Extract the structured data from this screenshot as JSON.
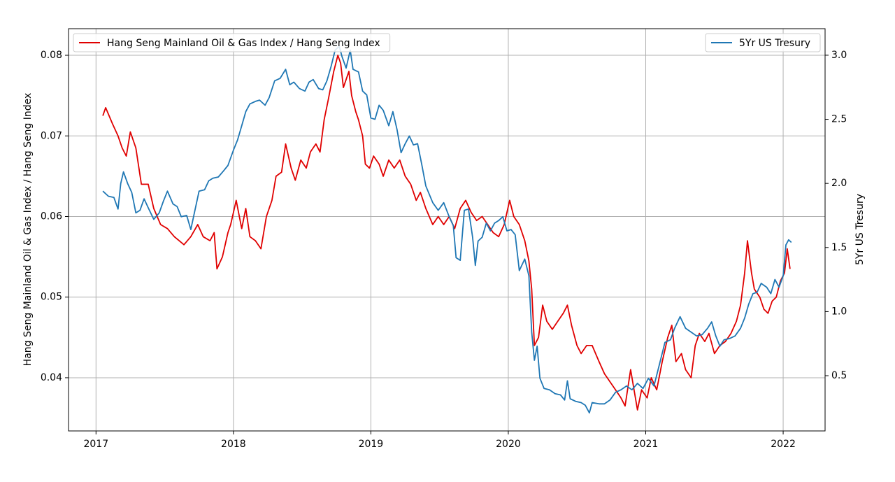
{
  "chart_data": {
    "type": "line",
    "ylabel": "Hang Seng Mainland Oil & Gas Index / Hang Seng Index",
    "y2label": "5Yr US Tresury",
    "xlim": [
      2016.8,
      2022.305
    ],
    "xticks": [
      2017,
      2018,
      2019,
      2020,
      2021,
      2022
    ],
    "ylim": [
      0.0334,
      0.0833
    ],
    "yticks": [
      0.04,
      0.05,
      0.06,
      0.07,
      0.08
    ],
    "y2lim": [
      0.069,
      3.207
    ],
    "y2ticks": [
      {
        "value": 0.5,
        "label": "0.5"
      },
      {
        "value": 1,
        "label": "1.0"
      },
      {
        "value": 1.5,
        "label": "1.5"
      },
      {
        "value": 2,
        "label": "2.0"
      },
      {
        "value": 2.5,
        "label": "2.5"
      },
      {
        "value": 3,
        "label": "3.0"
      }
    ],
    "grid": true,
    "series": [
      {
        "name": "Hang Seng Mainland Oil & Gas Index / Hang Seng Index",
        "color": "#e00000",
        "axis": "y",
        "legend": "upper left",
        "x": [
          2017.05,
          2017.07,
          2017.12,
          2017.16,
          2017.19,
          2017.22,
          2017.25,
          2017.29,
          2017.33,
          2017.38,
          2017.42,
          2017.47,
          2017.52,
          2017.57,
          2017.64,
          2017.69,
          2017.74,
          2017.78,
          2017.83,
          2017.86,
          2017.88,
          2017.92,
          2017.96,
          2017.98,
          2018.02,
          2018.06,
          2018.09,
          2018.12,
          2018.16,
          2018.2,
          2018.24,
          2018.28,
          2018.31,
          2018.35,
          2018.38,
          2018.42,
          2018.45,
          2018.49,
          2018.53,
          2018.56,
          2018.6,
          2018.63,
          2018.66,
          2018.69,
          2018.73,
          2018.76,
          2018.78,
          2018.8,
          2018.84,
          2018.86,
          2018.89,
          2018.91,
          2018.94,
          2018.96,
          2018.99,
          2019.02,
          2019.06,
          2019.09,
          2019.13,
          2019.17,
          2019.21,
          2019.25,
          2019.29,
          2019.33,
          2019.36,
          2019.4,
          2019.45,
          2019.49,
          2019.53,
          2019.57,
          2019.61,
          2019.65,
          2019.69,
          2019.73,
          2019.77,
          2019.81,
          2019.85,
          2019.89,
          2019.93,
          2019.97,
          2020.01,
          2020.04,
          2020.08,
          2020.12,
          2020.15,
          2020.17,
          2020.19,
          2020.22,
          2020.25,
          2020.28,
          2020.32,
          2020.36,
          2020.4,
          2020.43,
          2020.46,
          2020.5,
          2020.53,
          2020.57,
          2020.61,
          2020.66,
          2020.7,
          2020.74,
          2020.78,
          2020.82,
          2020.85,
          2020.89,
          2020.91,
          2020.94,
          2020.97,
          2021.01,
          2021.04,
          2021.08,
          2021.12,
          2021.16,
          2021.19,
          2021.22,
          2021.26,
          2021.29,
          2021.33,
          2021.36,
          2021.39,
          2021.43,
          2021.46,
          2021.5,
          2021.54,
          2021.58,
          2021.62,
          2021.66,
          2021.69,
          2021.72,
          2021.74,
          2021.77,
          2021.79,
          2021.83,
          2021.86,
          2021.89,
          2021.92,
          2021.95,
          2021.98,
          2022.01,
          2022.03,
          2022.05
        ],
        "values": [
          0.0725,
          0.0735,
          0.0715,
          0.07,
          0.0685,
          0.0675,
          0.0705,
          0.0685,
          0.064,
          0.064,
          0.061,
          0.059,
          0.0585,
          0.0575,
          0.0565,
          0.0575,
          0.059,
          0.0575,
          0.057,
          0.058,
          0.0535,
          0.055,
          0.058,
          0.059,
          0.062,
          0.0585,
          0.061,
          0.0575,
          0.057,
          0.056,
          0.06,
          0.062,
          0.065,
          0.0655,
          0.069,
          0.066,
          0.0645,
          0.067,
          0.066,
          0.068,
          0.069,
          0.068,
          0.072,
          0.0745,
          0.078,
          0.08,
          0.079,
          0.076,
          0.078,
          0.075,
          0.073,
          0.072,
          0.07,
          0.0665,
          0.066,
          0.0675,
          0.0665,
          0.065,
          0.067,
          0.066,
          0.067,
          0.065,
          0.064,
          0.062,
          0.063,
          0.061,
          0.059,
          0.06,
          0.059,
          0.06,
          0.0585,
          0.061,
          0.062,
          0.0605,
          0.0595,
          0.06,
          0.059,
          0.058,
          0.0575,
          0.059,
          0.062,
          0.06,
          0.059,
          0.057,
          0.0545,
          0.051,
          0.044,
          0.045,
          0.049,
          0.047,
          0.046,
          0.047,
          0.048,
          0.049,
          0.0465,
          0.044,
          0.043,
          0.044,
          0.044,
          0.042,
          0.0405,
          0.0395,
          0.0385,
          0.0375,
          0.0365,
          0.041,
          0.039,
          0.036,
          0.0385,
          0.0375,
          0.04,
          0.0385,
          0.042,
          0.045,
          0.0465,
          0.042,
          0.043,
          0.041,
          0.04,
          0.044,
          0.0455,
          0.0445,
          0.0455,
          0.043,
          0.044,
          0.0445,
          0.0455,
          0.047,
          0.049,
          0.053,
          0.057,
          0.053,
          0.051,
          0.05,
          0.0485,
          0.048,
          0.0495,
          0.05,
          0.052,
          0.053,
          0.056,
          0.0535
        ]
      },
      {
        "name": "5Yr US Tresury",
        "color": "#1f77b4",
        "axis": "y2",
        "legend": "upper right",
        "x": [
          2017.05,
          2017.09,
          2017.13,
          2017.16,
          2017.18,
          2017.2,
          2017.23,
          2017.26,
          2017.29,
          2017.32,
          2017.35,
          2017.38,
          2017.42,
          2017.46,
          2017.49,
          2017.52,
          2017.56,
          2017.59,
          2017.62,
          2017.66,
          2017.69,
          2017.72,
          2017.75,
          2017.79,
          2017.82,
          2017.85,
          2017.89,
          2017.93,
          2017.96,
          2018.0,
          2018.03,
          2018.06,
          2018.09,
          2018.12,
          2018.16,
          2018.19,
          2018.23,
          2018.26,
          2018.3,
          2018.34,
          2018.38,
          2018.41,
          2018.44,
          2018.48,
          2018.52,
          2018.55,
          2018.58,
          2018.62,
          2018.65,
          2018.68,
          2018.71,
          2018.74,
          2018.77,
          2018.79,
          2018.82,
          2018.85,
          2018.87,
          2018.91,
          2018.94,
          2018.97,
          2019.0,
          2019.03,
          2019.06,
          2019.09,
          2019.13,
          2019.16,
          2019.19,
          2019.22,
          2019.25,
          2019.28,
          2019.31,
          2019.34,
          2019.37,
          2019.4,
          2019.45,
          2019.49,
          2019.53,
          2019.57,
          2019.6,
          2019.62,
          2019.65,
          2019.68,
          2019.71,
          2019.74,
          2019.76,
          2019.78,
          2019.81,
          2019.84,
          2019.87,
          2019.9,
          2019.93,
          2019.96,
          2019.99,
          2020.02,
          2020.05,
          2020.08,
          2020.12,
          2020.15,
          2020.17,
          2020.19,
          2020.21,
          2020.23,
          2020.26,
          2020.3,
          2020.34,
          2020.38,
          2020.41,
          2020.43,
          2020.45,
          2020.49,
          2020.53,
          2020.56,
          2020.59,
          2020.61,
          2020.66,
          2020.7,
          2020.74,
          2020.78,
          2020.82,
          2020.86,
          2020.9,
          2020.94,
          2020.98,
          2021.02,
          2021.06,
          2021.1,
          2021.14,
          2021.18,
          2021.21,
          2021.25,
          2021.29,
          2021.33,
          2021.37,
          2021.41,
          2021.45,
          2021.48,
          2021.51,
          2021.54,
          2021.57,
          2021.61,
          2021.65,
          2021.69,
          2021.72,
          2021.75,
          2021.78,
          2021.81,
          2021.84,
          2021.88,
          2021.91,
          2021.94,
          2021.97,
          2022.0,
          2022.02,
          2022.04,
          2022.06
        ],
        "values": [
          1.94,
          1.9,
          1.89,
          1.8,
          2.0,
          2.09,
          2.0,
          1.93,
          1.77,
          1.79,
          1.88,
          1.81,
          1.72,
          1.77,
          1.86,
          1.94,
          1.84,
          1.82,
          1.74,
          1.75,
          1.64,
          1.79,
          1.94,
          1.95,
          2.02,
          2.04,
          2.05,
          2.1,
          2.14,
          2.26,
          2.34,
          2.45,
          2.56,
          2.62,
          2.64,
          2.65,
          2.61,
          2.67,
          2.8,
          2.82,
          2.89,
          2.77,
          2.79,
          2.74,
          2.72,
          2.79,
          2.81,
          2.74,
          2.73,
          2.8,
          2.91,
          3.04,
          3.07,
          2.99,
          2.9,
          3.04,
          2.89,
          2.87,
          2.72,
          2.69,
          2.51,
          2.5,
          2.61,
          2.57,
          2.45,
          2.56,
          2.42,
          2.24,
          2.31,
          2.37,
          2.3,
          2.31,
          2.15,
          1.98,
          1.85,
          1.79,
          1.85,
          1.74,
          1.67,
          1.42,
          1.4,
          1.79,
          1.8,
          1.58,
          1.36,
          1.55,
          1.58,
          1.69,
          1.63,
          1.69,
          1.71,
          1.74,
          1.63,
          1.64,
          1.6,
          1.32,
          1.41,
          1.28,
          0.84,
          0.62,
          0.73,
          0.48,
          0.4,
          0.39,
          0.36,
          0.35,
          0.31,
          0.46,
          0.32,
          0.3,
          0.29,
          0.27,
          0.21,
          0.29,
          0.28,
          0.28,
          0.31,
          0.37,
          0.39,
          0.42,
          0.39,
          0.44,
          0.4,
          0.48,
          0.42,
          0.59,
          0.76,
          0.78,
          0.87,
          0.96,
          0.87,
          0.84,
          0.81,
          0.82,
          0.87,
          0.92,
          0.81,
          0.73,
          0.78,
          0.79,
          0.81,
          0.87,
          0.95,
          1.06,
          1.14,
          1.15,
          1.22,
          1.19,
          1.14,
          1.25,
          1.19,
          1.28,
          1.52,
          1.56,
          1.54
        ]
      }
    ]
  }
}
